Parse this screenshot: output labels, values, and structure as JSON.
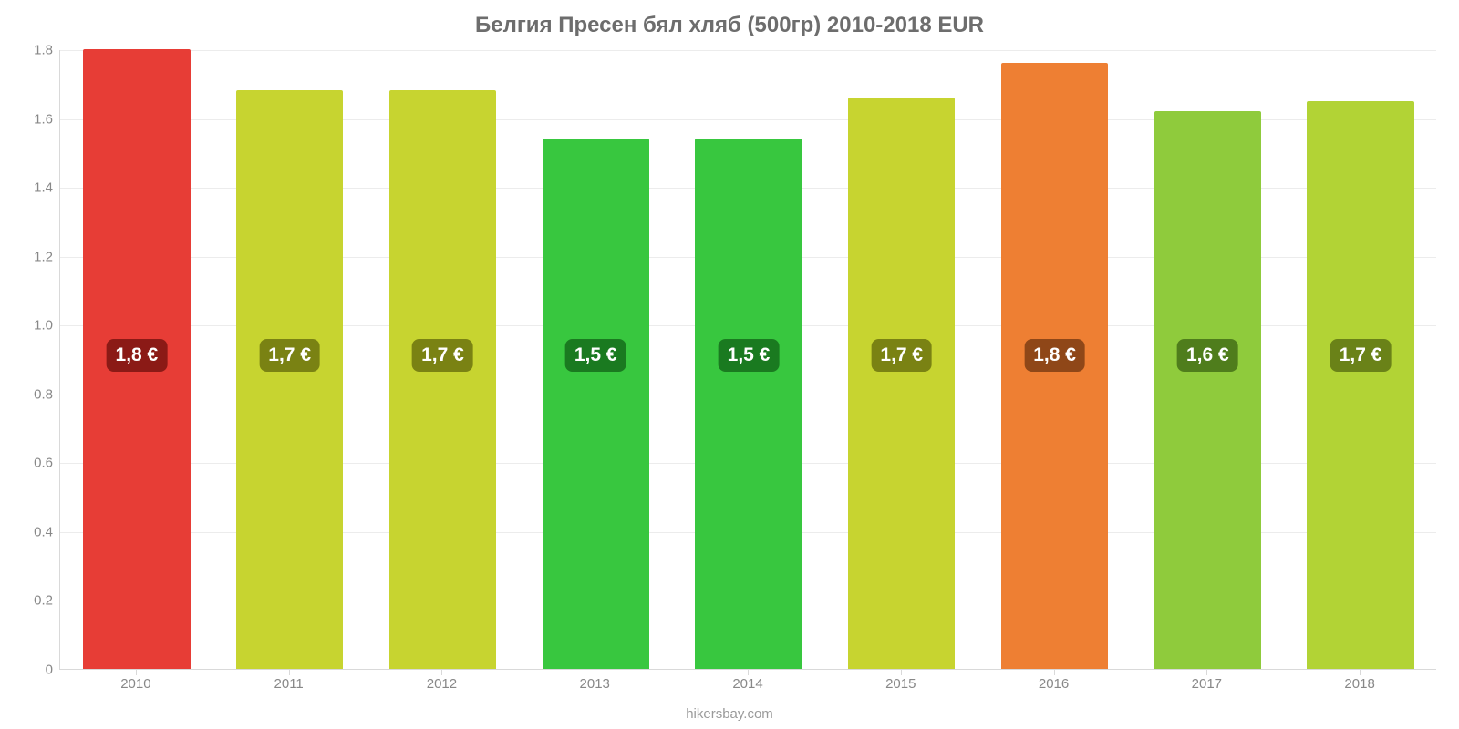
{
  "chart": {
    "type": "bar",
    "title": "Белгия Пресен бял хляб (500гр) 2010-2018 EUR",
    "title_fontsize": 24,
    "title_color": "#6d6d6d",
    "source_label": "hikersbay.com",
    "source_fontsize": 15,
    "source_color": "#9a9a9a",
    "background_color": "#ffffff",
    "grid_color": "#ececec",
    "axis_color": "#d9d9d9",
    "axis_label_color": "#888888",
    "axis_label_fontsize": 15,
    "y": {
      "min": 0,
      "max": 1.8,
      "tick_step": 0.2,
      "ticks": [
        "0",
        "0.2",
        "0.4",
        "0.6",
        "0.8",
        "1.0",
        "1.2",
        "1.4",
        "1.6",
        "1.8"
      ]
    },
    "categories": [
      "2010",
      "2011",
      "2012",
      "2013",
      "2014",
      "2015",
      "2016",
      "2017",
      "2018"
    ],
    "values": [
      1.8,
      1.68,
      1.68,
      1.54,
      1.54,
      1.66,
      1.76,
      1.62,
      1.65
    ],
    "value_labels": [
      "1,8 €",
      "1,7 €",
      "1,7 €",
      "1,5 €",
      "1,5 €",
      "1,7 €",
      "1,8 €",
      "1,6 €",
      "1,7 €"
    ],
    "value_label_fontsize": 21,
    "bar_colors": [
      "#e73d36",
      "#c7d430",
      "#c7d430",
      "#38c73f",
      "#38c73f",
      "#c7d430",
      "#ee7f33",
      "#8fcb3c",
      "#b2d335"
    ],
    "badge_colors": [
      "#8b1a16",
      "#7a8213",
      "#7a8213",
      "#1a7a20",
      "#1a7a20",
      "#7a8213",
      "#8f4718",
      "#4f7d1c",
      "#6a8218"
    ],
    "badge_center_value": 0.91,
    "bar_width_ratio": 0.7
  }
}
